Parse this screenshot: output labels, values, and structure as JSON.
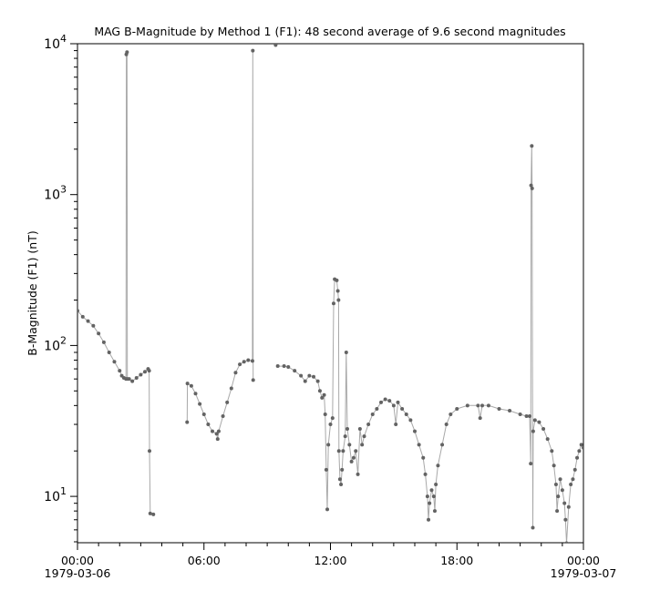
{
  "chart_data": {
    "type": "line",
    "title": "MAG  B-Magnitude by Method 1 (F1): 48 second average of 9.6 second magnitudes",
    "xlabel": "",
    "ylabel": "B-Magnitude (F1) (nT)",
    "date": "1979-03-06",
    "xlim": [
      "1979-03-06 00:00",
      "1979-03-07 00:00"
    ],
    "x_ticks": [
      {
        "time": "00:00",
        "label": "00:00",
        "sublabel": "1979-03-06"
      },
      {
        "time": "06:00",
        "label": "06:00",
        "sublabel": ""
      },
      {
        "time": "12:00",
        "label": "12:00",
        "sublabel": ""
      },
      {
        "time": "18:00",
        "label": "18:00",
        "sublabel": ""
      },
      {
        "time": "24:00",
        "label": "00:00",
        "sublabel": "1979-03-07"
      }
    ],
    "yscale": "log",
    "ylim": [
      4.93,
      10000
    ],
    "y_ticks": [
      {
        "value": 10,
        "base": "10",
        "exp": "1"
      },
      {
        "value": 100,
        "base": "10",
        "exp": "2"
      },
      {
        "value": 1000,
        "base": "10",
        "exp": "3"
      },
      {
        "value": 10000,
        "base": "10",
        "exp": "4"
      }
    ],
    "grid": false,
    "colors": {
      "marker": "#636363",
      "line": "#a8a8a8",
      "axis": "#000000"
    },
    "points": [
      [
        "00:00",
        170
      ],
      [
        "00:15",
        155
      ],
      [
        "00:30",
        145
      ],
      [
        "00:45",
        135
      ],
      [
        "01:00",
        120
      ],
      [
        "01:15",
        105
      ],
      [
        "01:30",
        90
      ],
      [
        "01:45",
        78
      ],
      [
        "02:00",
        68
      ],
      [
        "02:06",
        63
      ],
      [
        "02:12",
        61
      ],
      [
        "02:18",
        60
      ],
      [
        "02:19",
        8500
      ],
      [
        "02:21",
        8800
      ],
      [
        "02:22",
        60
      ],
      [
        "02:27",
        60
      ],
      [
        "02:36",
        58
      ],
      [
        "02:48",
        61
      ],
      [
        "03:00",
        64
      ],
      [
        "03:12",
        67
      ],
      [
        "03:21",
        70
      ],
      [
        "03:24",
        68
      ],
      [
        "03:25",
        20
      ],
      [
        "03:27",
        7.7
      ],
      [
        "03:36",
        7.6
      ],
      null,
      [
        "05:12",
        31
      ],
      [
        "05:13",
        56
      ],
      [
        "05:24",
        54
      ],
      [
        "05:36",
        48
      ],
      [
        "05:48",
        41
      ],
      [
        "06:00",
        35
      ],
      [
        "06:12",
        30
      ],
      [
        "06:24",
        27
      ],
      [
        "06:36",
        26
      ],
      [
        "06:39",
        24
      ],
      [
        "06:42",
        27
      ],
      [
        "06:54",
        34
      ],
      [
        "07:06",
        42
      ],
      [
        "07:18",
        52
      ],
      [
        "07:30",
        66
      ],
      [
        "07:42",
        75
      ],
      [
        "07:54",
        78
      ],
      [
        "08:06",
        80
      ],
      [
        "08:18",
        79
      ],
      [
        "08:19",
        9000
      ],
      [
        "08:20",
        59
      ],
      null,
      [
        "09:24",
        9800
      ],
      null,
      [
        "09:30",
        73
      ],
      [
        "09:48",
        73
      ],
      [
        "10:00",
        72
      ],
      [
        "10:18",
        68
      ],
      [
        "10:36",
        63
      ],
      [
        "10:48",
        58
      ],
      [
        "11:00",
        63
      ],
      [
        "11:12",
        62
      ],
      [
        "11:24",
        58
      ],
      [
        "11:30",
        50
      ],
      [
        "11:36",
        45
      ],
      [
        "11:42",
        47
      ],
      [
        "11:45",
        35
      ],
      [
        "11:48",
        15
      ],
      [
        "11:51",
        8.2
      ],
      [
        "11:54",
        22
      ],
      [
        "12:00",
        30
      ],
      [
        "12:06",
        33
      ],
      [
        "12:09",
        190
      ],
      [
        "12:12",
        275
      ],
      [
        "12:18",
        270
      ],
      [
        "12:21",
        230
      ],
      [
        "12:23",
        200
      ],
      [
        "12:24",
        20
      ],
      [
        "12:27",
        13
      ],
      [
        "12:30",
        12
      ],
      [
        "12:33",
        15
      ],
      [
        "12:36",
        20
      ],
      [
        "12:42",
        25
      ],
      [
        "12:45",
        90
      ],
      [
        "12:48",
        28
      ],
      [
        "12:54",
        22
      ],
      [
        "13:00",
        17
      ],
      [
        "13:06",
        18
      ],
      [
        "13:12",
        20
      ],
      [
        "13:18",
        14
      ],
      [
        "13:24",
        28
      ],
      [
        "13:30",
        22
      ],
      [
        "13:36",
        25
      ],
      [
        "13:48",
        30
      ],
      [
        "14:00",
        35
      ],
      [
        "14:12",
        38
      ],
      [
        "14:24",
        42
      ],
      [
        "14:36",
        44
      ],
      [
        "14:48",
        43
      ],
      [
        "15:00",
        40
      ],
      [
        "15:06",
        30
      ],
      [
        "15:12",
        42
      ],
      [
        "15:24",
        38
      ],
      [
        "15:36",
        35
      ],
      [
        "15:48",
        32
      ],
      [
        "16:00",
        27
      ],
      [
        "16:12",
        22
      ],
      [
        "16:24",
        18
      ],
      [
        "16:30",
        14
      ],
      [
        "16:36",
        10
      ],
      [
        "16:39",
        7
      ],
      [
        "16:42",
        9
      ],
      [
        "16:48",
        11
      ],
      [
        "16:54",
        10
      ],
      [
        "16:57",
        8
      ],
      [
        "17:00",
        12
      ],
      [
        "17:06",
        16
      ],
      [
        "17:18",
        22
      ],
      [
        "17:30",
        30
      ],
      [
        "17:42",
        35
      ],
      [
        "18:00",
        38
      ],
      [
        "18:30",
        40
      ],
      [
        "19:00",
        40
      ],
      [
        "19:06",
        33
      ],
      [
        "19:12",
        40
      ],
      [
        "19:30",
        40
      ],
      [
        "20:00",
        38
      ],
      [
        "20:30",
        37
      ],
      [
        "21:00",
        35
      ],
      [
        "21:18",
        34
      ],
      [
        "21:27",
        34
      ],
      [
        "21:30",
        16.5
      ],
      [
        "21:31",
        1150
      ],
      [
        "21:33",
        2100
      ],
      [
        "21:34",
        1100
      ],
      [
        "21:36",
        6.2
      ],
      [
        "21:37",
        27
      ],
      [
        "21:42",
        32
      ],
      [
        "21:54",
        31
      ],
      [
        "22:06",
        28
      ],
      [
        "22:18",
        24
      ],
      [
        "22:30",
        20
      ],
      [
        "22:36",
        16
      ],
      [
        "22:42",
        12
      ],
      [
        "22:45",
        8
      ],
      [
        "22:48",
        10
      ],
      [
        "22:54",
        13
      ],
      [
        "23:00",
        11
      ],
      [
        "23:06",
        9
      ],
      [
        "23:09",
        7
      ],
      [
        "23:12",
        4.9
      ],
      [
        "23:18",
        8.5
      ],
      [
        "23:24",
        12
      ],
      [
        "23:30",
        13
      ],
      [
        "23:36",
        15
      ],
      [
        "23:42",
        18
      ],
      [
        "23:48",
        20
      ],
      [
        "23:54",
        22
      ],
      [
        "24:00",
        21
      ]
    ]
  }
}
